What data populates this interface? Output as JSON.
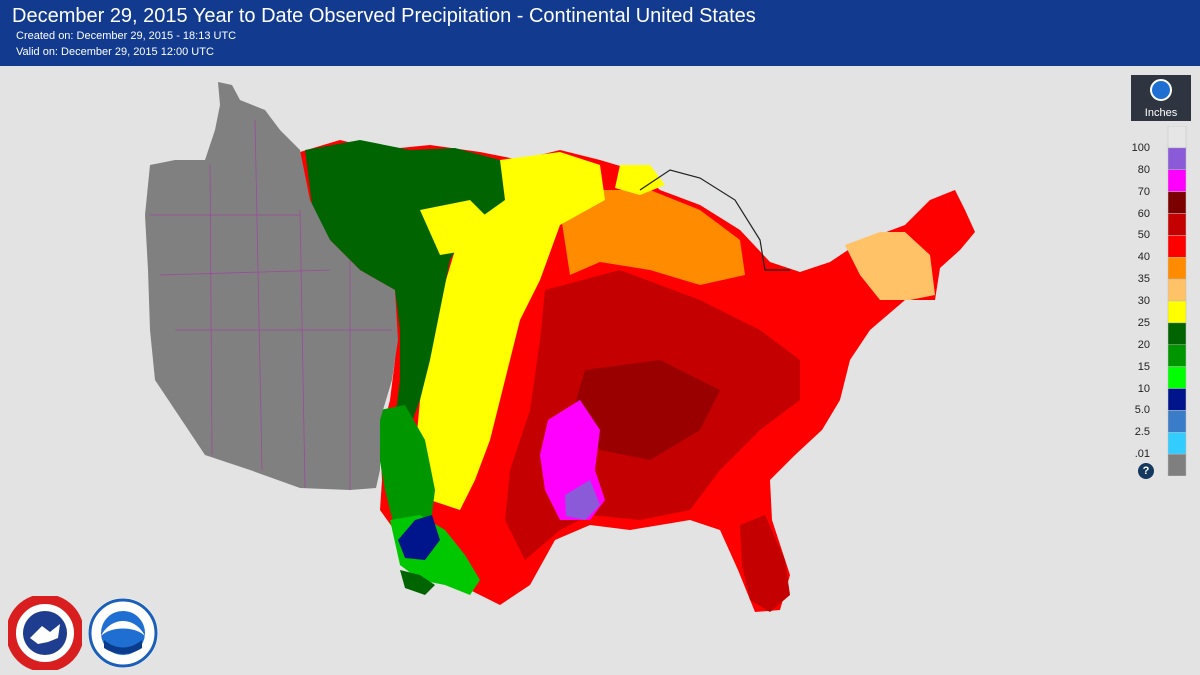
{
  "header": {
    "title": "December 29, 2015 Year to Date Observed Precipitation - Continental United States",
    "created": "Created on: December 29, 2015 - 18:13 UTC",
    "valid": "Valid on: December 29, 2015 12:00 UTC"
  },
  "legend": {
    "unit": "Inches",
    "labels": [
      "100",
      "80",
      "70",
      "60",
      "50",
      "40",
      "35",
      "30",
      "25",
      "20",
      "15",
      "10",
      "5.0",
      "2.5",
      ".01"
    ],
    "colors": [
      "#e6e6e6",
      "#8a5ad8",
      "#ff00ff",
      "#7d0000",
      "#c40000",
      "#ff0000",
      "#ff8c00",
      "#ffc266",
      "#ffff00",
      "#006400",
      "#009600",
      "#00ff00",
      "#00158c",
      "#3a7cc8",
      "#33ccff",
      "#7f7f7f"
    ],
    "help_icon": "question-icon"
  },
  "map": {
    "region": "Continental United States",
    "no_data_color": "#808080"
  },
  "logos": {
    "nws": "National Weather Service",
    "noaa": "NOAA"
  }
}
